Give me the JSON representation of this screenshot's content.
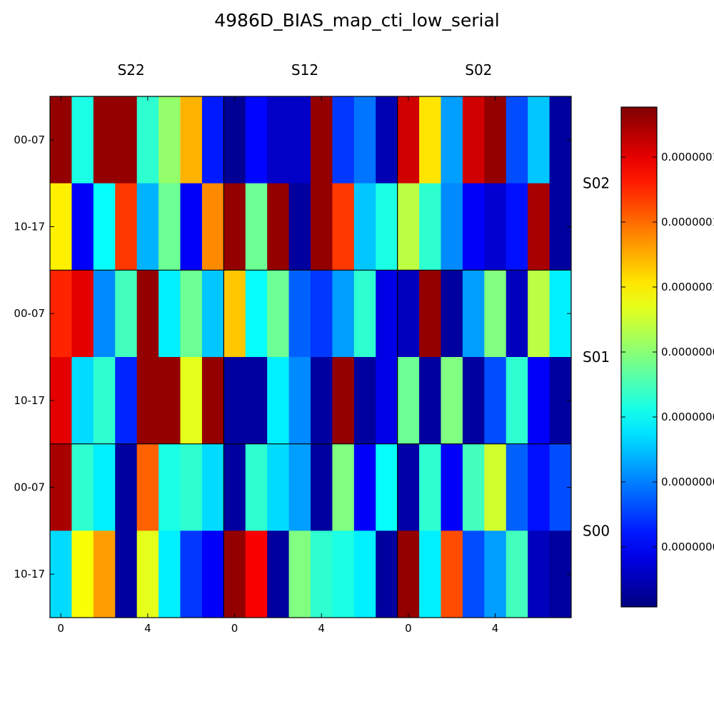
{
  "chart_data": {
    "type": "heatmap",
    "title": "4986D_BIAS_map_cti_low_serial",
    "colormap": "jet",
    "column_groups": [
      "S22",
      "S12",
      "S02"
    ],
    "row_groups": [
      "S02",
      "S01",
      "S00"
    ],
    "y_tick_labels": [
      "00-07",
      "10-17"
    ],
    "x_tick_labels": [
      "0",
      "4"
    ],
    "colorbar_tick_labels": [
      "0.0000001",
      "0.0000001",
      "0.0000001",
      "0.0000000",
      "0.0000000",
      "0.0000000",
      "0.0000000"
    ],
    "colorbar_tick_norm": [
      0.1,
      0.23,
      0.36,
      0.49,
      0.62,
      0.75,
      0.88
    ],
    "value_scale": "normalized 0-1 (colormap fraction)",
    "grid": [
      [
        0.98,
        0.4,
        0.98,
        0.98,
        0.42,
        0.52,
        0.7,
        0.15,
        0.02,
        0.13,
        0.07,
        0.07,
        0.98,
        0.18,
        0.24,
        0.05,
        0.92,
        0.65,
        0.28,
        0.92,
        0.98,
        0.2,
        0.32,
        0.03
      ],
      [
        0.64,
        0.12,
        0.38,
        0.82,
        0.3,
        0.48,
        0.12,
        0.74,
        0.98,
        0.48,
        0.98,
        0.03,
        0.98,
        0.82,
        0.32,
        0.4,
        0.56,
        0.42,
        0.26,
        0.12,
        0.08,
        0.14,
        0.96,
        0.03
      ],
      [
        0.84,
        0.9,
        0.26,
        0.44,
        0.98,
        0.36,
        0.48,
        0.32,
        0.68,
        0.38,
        0.48,
        0.22,
        0.18,
        0.28,
        0.42,
        0.1,
        0.06,
        0.98,
        0.03,
        0.28,
        0.5,
        0.06,
        0.56,
        0.36
      ],
      [
        0.9,
        0.34,
        0.42,
        0.16,
        0.98,
        0.98,
        0.6,
        0.98,
        0.03,
        0.03,
        0.36,
        0.26,
        0.03,
        0.98,
        0.03,
        0.1,
        0.48,
        0.03,
        0.5,
        0.03,
        0.2,
        0.42,
        0.12,
        0.03
      ],
      [
        0.96,
        0.42,
        0.36,
        0.03,
        0.78,
        0.4,
        0.42,
        0.34,
        0.03,
        0.42,
        0.34,
        0.28,
        0.03,
        0.5,
        0.12,
        0.38,
        0.04,
        0.42,
        0.12,
        0.44,
        0.58,
        0.22,
        0.14,
        0.2
      ],
      [
        0.34,
        0.62,
        0.72,
        0.03,
        0.6,
        0.36,
        0.18,
        0.12,
        0.98,
        0.88,
        0.03,
        0.5,
        0.42,
        0.4,
        0.36,
        0.03,
        0.98,
        0.36,
        0.8,
        0.2,
        0.28,
        0.44,
        0.06,
        0.03
      ]
    ]
  }
}
